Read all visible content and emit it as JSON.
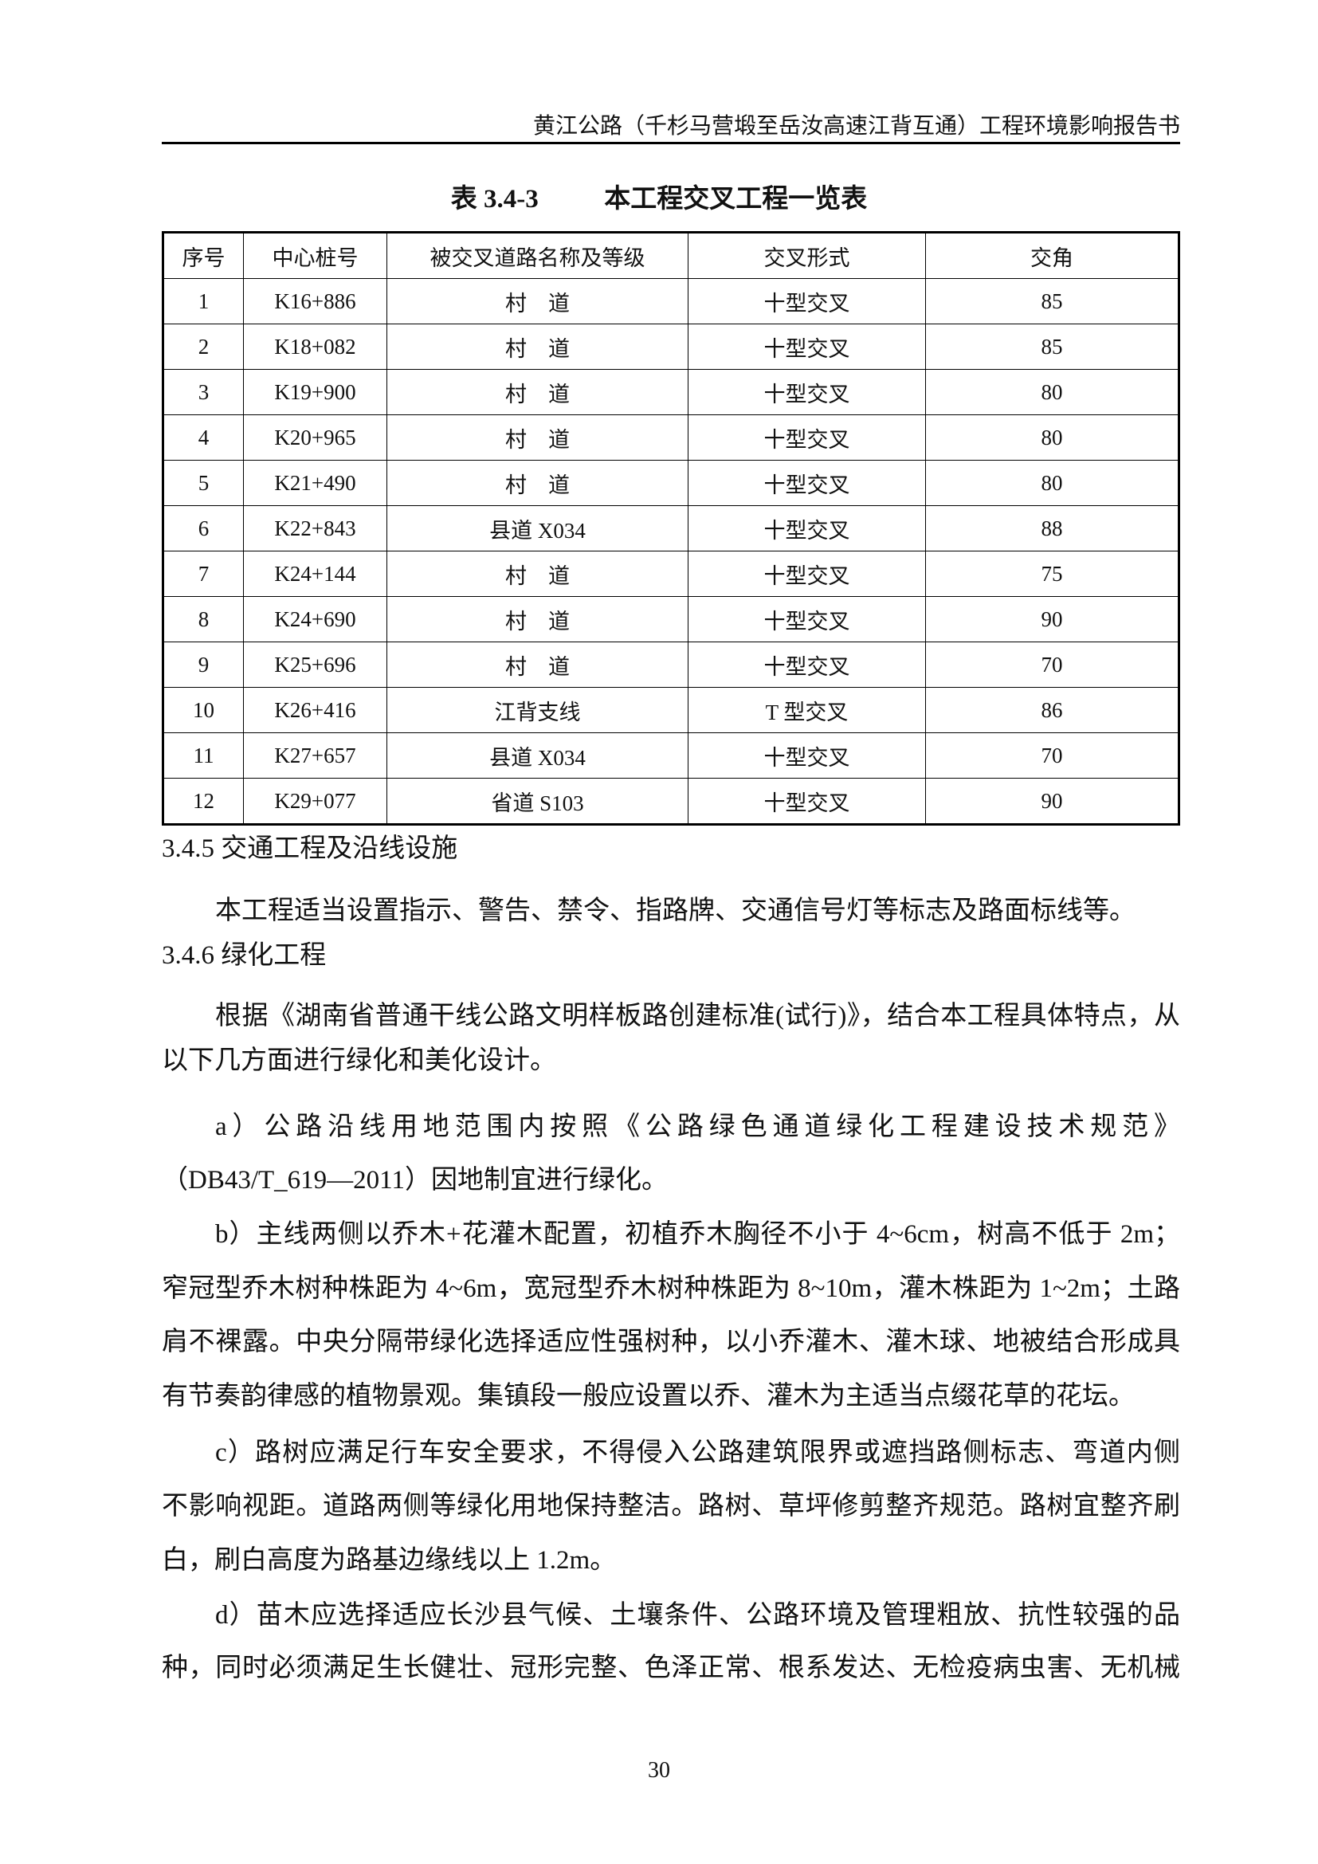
{
  "header": {
    "running_title": "黄江公路（千杉马营塅至岳汝高速江背互通）工程环境影响报告书"
  },
  "table": {
    "caption": "表 3.4-3          本工程交叉工程一览表",
    "columns": [
      "序号",
      "中心桩号",
      "被交叉道路名称及等级",
      "交叉形式",
      "交角"
    ],
    "rows": [
      [
        "1",
        "K16+886",
        "村　道",
        "十型交叉",
        "85"
      ],
      [
        "2",
        "K18+082",
        "村　道",
        "十型交叉",
        "85"
      ],
      [
        "3",
        "K19+900",
        "村　道",
        "十型交叉",
        "80"
      ],
      [
        "4",
        "K20+965",
        "村　道",
        "十型交叉",
        "80"
      ],
      [
        "5",
        "K21+490",
        "村　道",
        "十型交叉",
        "80"
      ],
      [
        "6",
        "K22+843",
        "县道 X034",
        "十型交叉",
        "88"
      ],
      [
        "7",
        "K24+144",
        "村　道",
        "十型交叉",
        "75"
      ],
      [
        "8",
        "K24+690",
        "村　道",
        "十型交叉",
        "90"
      ],
      [
        "9",
        "K25+696",
        "村　道",
        "十型交叉",
        "70"
      ],
      [
        "10",
        "K26+416",
        "江背支线",
        "T 型交叉",
        "86"
      ],
      [
        "11",
        "K27+657",
        "县道 X034",
        "十型交叉",
        "70"
      ],
      [
        "12",
        "K29+077",
        "省道 S103",
        "十型交叉",
        "90"
      ]
    ]
  },
  "body": {
    "lines": [
      {
        "text": "3.4.5 交通工程及沿线设施",
        "kind": "heading"
      },
      {
        "text": "本工程适当设置指示、警告、禁令、指路牌、交通信号灯等标志及路面标线等。",
        "kind": "indent-last"
      },
      {
        "text": "3.4.6 绿化工程",
        "kind": "heading"
      },
      {
        "text": "根据《湖南省普通干线公路文明样板路创建标准(试行)》，结合本工程具体特点，从",
        "kind": "indent"
      },
      {
        "text": "以下几方面进行绿化和美化设计。",
        "kind": "last"
      },
      {
        "text": "a）公路沿线用地范围内按照《公路绿色通道绿化工程建设技术规范》",
        "kind": "indent"
      },
      {
        "text": "（DB43/T_619—2011）因地制宜进行绿化。",
        "kind": "last"
      },
      {
        "text": "b）主线两侧以乔木+花灌木配置，初植乔木胸径不小于 4~6cm，树高不低于 2m；",
        "kind": "indent"
      },
      {
        "text": "窄冠型乔木树种株距为 4~6m，宽冠型乔木树种株距为 8~10m，灌木株距为 1~2m；土路",
        "kind": "full"
      },
      {
        "text": "肩不裸露。中央分隔带绿化选择适应性强树种，以小乔灌木、灌木球、地被结合形成具",
        "kind": "full"
      },
      {
        "text": "有节奏韵律感的植物景观。集镇段一般应设置以乔、灌木为主适当点缀花草的花坛。",
        "kind": "last"
      },
      {
        "text": "c）路树应满足行车安全要求，不得侵入公路建筑限界或遮挡路侧标志、弯道内侧",
        "kind": "indent"
      },
      {
        "text": "不影响视距。道路两侧等绿化用地保持整洁。路树、草坪修剪整齐规范。路树宜整齐刷",
        "kind": "full"
      },
      {
        "text": "白，刷白高度为路基边缘线以上 1.2m。",
        "kind": "last"
      },
      {
        "text": "d）苗木应选择适应长沙县气候、土壤条件、公路环境及管理粗放、抗性较强的品",
        "kind": "indent"
      },
      {
        "text": "种，同时必须满足生长健壮、冠形完整、色泽正常、根系发达、无检疫病虫害、无机械",
        "kind": "full"
      }
    ]
  },
  "footer": {
    "page_number": "30"
  }
}
